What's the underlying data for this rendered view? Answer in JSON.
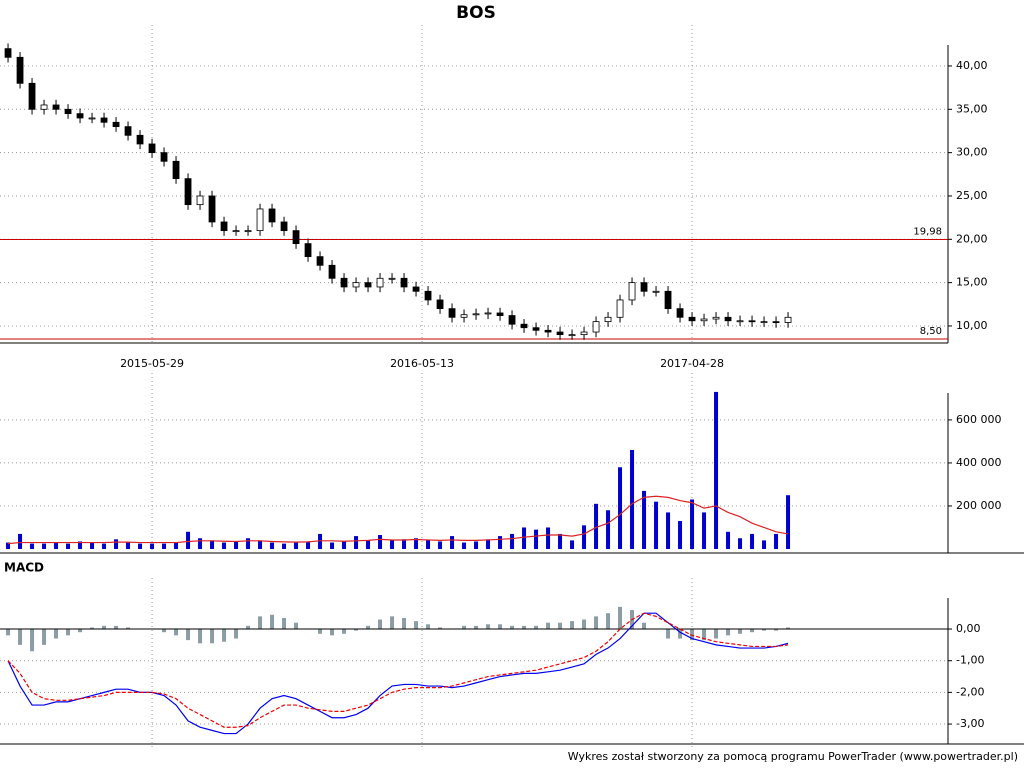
{
  "chart_data": [
    {
      "type": "candlestick",
      "title": "BOS",
      "open": [
        42,
        41,
        38,
        35,
        35.5,
        35,
        34.5,
        34,
        34,
        33.5,
        33,
        32,
        31,
        30,
        29,
        27,
        24,
        25,
        22,
        21,
        21,
        21,
        23.5,
        22,
        21,
        19.5,
        18,
        17,
        15.5,
        14.5,
        15,
        14.5,
        15.5,
        15.5,
        14.5,
        14,
        13,
        12,
        11,
        11.3,
        11.4,
        11.5,
        11.2,
        10.2,
        9.8,
        9.5,
        9.3,
        9.0,
        9.0,
        9.3,
        10.5,
        11,
        13,
        15,
        14,
        14,
        12,
        11,
        10.6,
        10.8,
        11,
        10.6,
        10.6,
        10.5,
        10.5,
        10.4
      ],
      "high": [
        42.6,
        41.6,
        38.6,
        36.1,
        36.1,
        35.6,
        35.1,
        34.6,
        34.6,
        34.1,
        33.6,
        32.6,
        31.6,
        30.6,
        29.6,
        27.6,
        25.6,
        25.6,
        22.6,
        21.6,
        21.6,
        24.1,
        24.1,
        22.6,
        21.6,
        20.1,
        18.6,
        17.6,
        16.1,
        15.6,
        15.6,
        16.1,
        16.1,
        16.1,
        15.1,
        14.6,
        13.6,
        12.6,
        11.9,
        12.0,
        12.1,
        12.1,
        11.8,
        10.8,
        10.4,
        10.1,
        9.9,
        9.6,
        9.9,
        11.1,
        11.6,
        13.6,
        15.6,
        15.6,
        14.6,
        14.6,
        12.6,
        11.6,
        11.4,
        11.6,
        11.6,
        11.2,
        11.2,
        11.1,
        11.1,
        11.6
      ],
      "low": [
        40.4,
        37.4,
        34.4,
        34.4,
        34.4,
        33.9,
        33.4,
        33.4,
        32.9,
        32.4,
        31.4,
        30.4,
        29.4,
        28.4,
        26.4,
        23.4,
        23.4,
        21.4,
        20.4,
        20.4,
        20.4,
        20.4,
        21.4,
        20.4,
        18.9,
        17.4,
        16.4,
        14.9,
        13.9,
        13.9,
        13.9,
        13.9,
        14.9,
        13.9,
        13.4,
        12.4,
        11.4,
        10.4,
        10.4,
        10.7,
        10.8,
        10.6,
        9.6,
        9.2,
        8.9,
        8.7,
        8.4,
        8.4,
        8.4,
        8.7,
        9.9,
        10.4,
        12.4,
        13.4,
        13.4,
        11.4,
        10.4,
        10.0,
        10.0,
        10.2,
        10.0,
        10.0,
        9.9,
        9.9,
        9.8,
        9.8
      ],
      "close": [
        41,
        38,
        35,
        35.5,
        35,
        34.5,
        34,
        34,
        33.5,
        33,
        32,
        31,
        30,
        29,
        27,
        24,
        25,
        22,
        21,
        21,
        21,
        23.5,
        22,
        21,
        19.5,
        18,
        17,
        15.5,
        14.5,
        15,
        14.5,
        15.5,
        15.5,
        14.5,
        14,
        13,
        12,
        11,
        11.3,
        11.4,
        11.5,
        11.2,
        10.2,
        9.8,
        9.5,
        9.3,
        9.0,
        9.0,
        9.3,
        10.5,
        11,
        13,
        15,
        14,
        14,
        12,
        11,
        10.6,
        10.8,
        11,
        10.6,
        10.6,
        10.5,
        10.5,
        10.4,
        11
      ],
      "xlim": [
        -0.67,
        78.33
      ],
      "xticks": [
        {
          "value": 12,
          "label": "2015-05-29"
        },
        {
          "value": 34.5,
          "label": "2016-05-13"
        },
        {
          "value": 57,
          "label": "2017-04-28"
        }
      ],
      "ylim": [
        8.38,
        42.42
      ],
      "yticks": [
        {
          "value": 10,
          "label": "10,00"
        },
        {
          "value": 15,
          "label": "15,00"
        },
        {
          "value": 20,
          "label": "20,00"
        },
        {
          "value": 25,
          "label": "25,00"
        },
        {
          "value": 30,
          "label": "30,00"
        },
        {
          "value": 35,
          "label": "35,00"
        },
        {
          "value": 40,
          "label": "40,00"
        }
      ],
      "reference_lines": [
        {
          "value": 19.98,
          "label": "19,98"
        },
        {
          "value": 8.5,
          "label": "8,50"
        }
      ],
      "up_color": "#ffffff",
      "down_color": "#000000",
      "line_color": "#cc0000"
    },
    {
      "type": "bar",
      "series": [
        {
          "color": "#0000cc",
          "values": [
            30000,
            70000,
            25000,
            25000,
            30000,
            25000,
            35000,
            30000,
            25000,
            45000,
            30000,
            25000,
            25000,
            25000,
            30000,
            80000,
            50000,
            40000,
            30000,
            35000,
            50000,
            40000,
            30000,
            25000,
            30000,
            35000,
            70000,
            30000,
            35000,
            60000,
            40000,
            65000,
            40000,
            45000,
            50000,
            40000,
            35000,
            60000,
            30000,
            35000,
            45000,
            60000,
            70000,
            100000,
            90000,
            100000,
            70000,
            40000,
            110000,
            210000,
            180000,
            380000,
            460000,
            270000,
            220000,
            170000,
            130000,
            230000,
            170000,
            730000,
            80000,
            50000,
            70000,
            40000,
            70000,
            250000
          ]
        },
        {
          "color": "#dd2222",
          "line": true,
          "values": [
            25000,
            30000,
            30000,
            30000,
            30000,
            30000,
            30000,
            30000,
            30000,
            32000,
            32000,
            30000,
            30000,
            30000,
            30000,
            35000,
            38000,
            38000,
            36000,
            35000,
            38000,
            38000,
            35000,
            33000,
            32000,
            33000,
            38000,
            38000,
            36000,
            38000,
            40000,
            45000,
            42000,
            42000,
            44000,
            42000,
            40000,
            42000,
            40000,
            40000,
            42000,
            45000,
            48000,
            55000,
            60000,
            65000,
            65000,
            60000,
            70000,
            100000,
            120000,
            160000,
            210000,
            240000,
            245000,
            240000,
            225000,
            215000,
            190000,
            200000,
            170000,
            150000,
            120000,
            100000,
            80000,
            70000
          ]
        }
      ],
      "ylim": [
        0,
        725000
      ],
      "yticks": [
        {
          "value": 200000,
          "label": "200 000"
        },
        {
          "value": 400000,
          "label": "400 000"
        },
        {
          "value": 600000,
          "label": "600 000"
        }
      ]
    },
    {
      "type": "line",
      "title": "MACD",
      "histogram": {
        "color": "#8c9ca4",
        "values": [
          -0.2,
          -0.5,
          -0.7,
          -0.5,
          -0.3,
          -0.2,
          -0.1,
          0.05,
          0.1,
          0.1,
          0.05,
          0,
          0,
          -0.1,
          -0.2,
          -0.35,
          -0.45,
          -0.45,
          -0.4,
          -0.3,
          0.1,
          0.4,
          0.45,
          0.35,
          0.2,
          0.0,
          -0.15,
          -0.2,
          -0.15,
          -0.05,
          0.1,
          0.3,
          0.4,
          0.35,
          0.25,
          0.15,
          0.05,
          0.0,
          0.1,
          0.1,
          0.15,
          0.15,
          0.1,
          0.1,
          0.1,
          0.2,
          0.2,
          0.25,
          0.3,
          0.4,
          0.5,
          0.7,
          0.6,
          0.2,
          0.0,
          -0.3,
          -0.3,
          -0.35,
          -0.35,
          -0.3,
          -0.2,
          -0.15,
          -0.1,
          -0.05,
          -0.05,
          0.05
        ]
      },
      "series": [
        {
          "color": "#0000ee",
          "values": [
            -1.0,
            -1.8,
            -2.4,
            -2.4,
            -2.3,
            -2.3,
            -2.2,
            -2.1,
            -2.0,
            -1.9,
            -1.9,
            -2.0,
            -2.0,
            -2.1,
            -2.4,
            -2.9,
            -3.1,
            -3.2,
            -3.3,
            -3.3,
            -3.0,
            -2.5,
            -2.2,
            -2.1,
            -2.2,
            -2.4,
            -2.6,
            -2.8,
            -2.8,
            -2.7,
            -2.5,
            -2.1,
            -1.8,
            -1.75,
            -1.75,
            -1.8,
            -1.8,
            -1.85,
            -1.8,
            -1.7,
            -1.6,
            -1.5,
            -1.45,
            -1.4,
            -1.4,
            -1.35,
            -1.3,
            -1.2,
            -1.1,
            -0.8,
            -0.6,
            -0.3,
            0.1,
            0.5,
            0.5,
            0.2,
            -0.1,
            -0.3,
            -0.4,
            -0.5,
            -0.55,
            -0.6,
            -0.6,
            -0.6,
            -0.55,
            -0.45
          ]
        },
        {
          "color": "#ee0000",
          "dashed": true,
          "values": [
            -1.0,
            -1.4,
            -2.0,
            -2.2,
            -2.25,
            -2.25,
            -2.2,
            -2.15,
            -2.1,
            -2.0,
            -2.0,
            -2.0,
            -2.0,
            -2.05,
            -2.2,
            -2.5,
            -2.7,
            -2.9,
            -3.1,
            -3.1,
            -3.05,
            -2.8,
            -2.6,
            -2.4,
            -2.4,
            -2.5,
            -2.55,
            -2.6,
            -2.6,
            -2.5,
            -2.4,
            -2.2,
            -2.0,
            -1.9,
            -1.85,
            -1.85,
            -1.85,
            -1.8,
            -1.7,
            -1.6,
            -1.5,
            -1.45,
            -1.4,
            -1.35,
            -1.3,
            -1.2,
            -1.1,
            -1.0,
            -0.9,
            -0.7,
            -0.4,
            0.0,
            0.3,
            0.5,
            0.4,
            0.2,
            0.0,
            -0.2,
            -0.3,
            -0.4,
            -0.45,
            -0.5,
            -0.55,
            -0.55,
            -0.55,
            -0.5
          ]
        }
      ],
      "ylim": [
        -3.63,
        0.98
      ],
      "yticks": [
        {
          "value": 0,
          "label": "0,00"
        },
        {
          "value": -1,
          "label": "-1,00"
        },
        {
          "value": -2,
          "label": "-2,00"
        },
        {
          "value": -3,
          "label": "-3,00"
        }
      ]
    }
  ],
  "footer": "Wykres został stworzony za pomocą programu PowerTrader (www.powertrader.pl)"
}
